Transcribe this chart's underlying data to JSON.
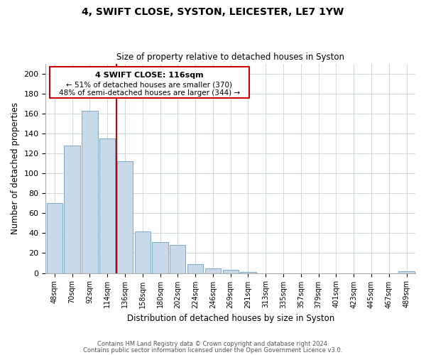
{
  "title": "4, SWIFT CLOSE, SYSTON, LEICESTER, LE7 1YW",
  "subtitle": "Size of property relative to detached houses in Syston",
  "xlabel": "Distribution of detached houses by size in Syston",
  "ylabel": "Number of detached properties",
  "bar_labels": [
    "48sqm",
    "70sqm",
    "92sqm",
    "114sqm",
    "136sqm",
    "158sqm",
    "180sqm",
    "202sqm",
    "224sqm",
    "246sqm",
    "269sqm",
    "291sqm",
    "313sqm",
    "335sqm",
    "357sqm",
    "379sqm",
    "401sqm",
    "423sqm",
    "445sqm",
    "467sqm",
    "489sqm"
  ],
  "bar_values": [
    70,
    128,
    163,
    135,
    112,
    42,
    31,
    28,
    9,
    5,
    3,
    1,
    0,
    0,
    0,
    0,
    0,
    0,
    0,
    0,
    2
  ],
  "bar_color": "#c8daea",
  "bar_edge_color": "#7aaac8",
  "vline_x": 3.5,
  "vline_color": "#cc0000",
  "annotation_title": "4 SWIFT CLOSE: 116sqm",
  "annotation_line1": "← 51% of detached houses are smaller (370)",
  "annotation_line2": "48% of semi-detached houses are larger (344) →",
  "box_color": "#cc0000",
  "ylim": [
    0,
    210
  ],
  "yticks": [
    0,
    20,
    40,
    60,
    80,
    100,
    120,
    140,
    160,
    180,
    200
  ],
  "footer1": "Contains HM Land Registry data © Crown copyright and database right 2024.",
  "footer2": "Contains public sector information licensed under the Open Government Licence v3.0.",
  "background_color": "#ffffff",
  "grid_color": "#c8d4dc"
}
